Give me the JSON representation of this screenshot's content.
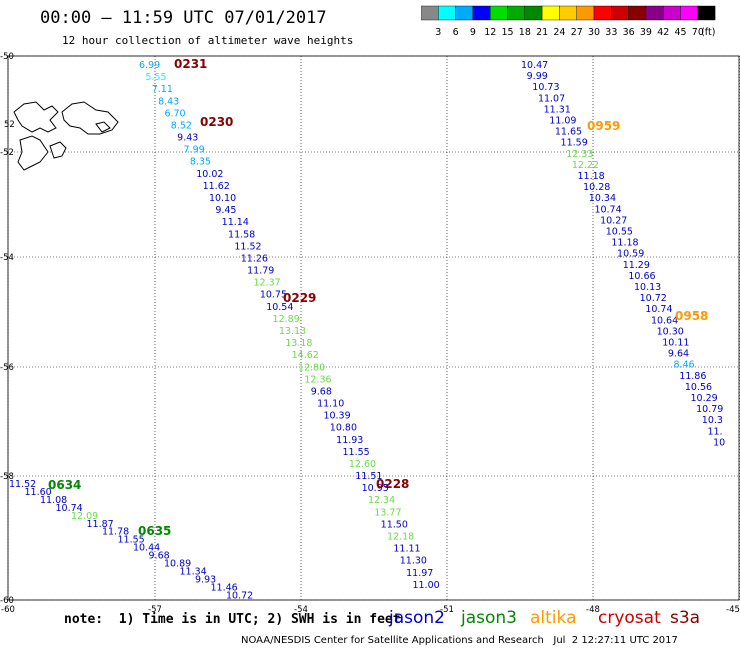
{
  "title": "00:00 – 11:59 UTC 07/01/2017",
  "subtitle": "12 hour collection of altimeter wave heights",
  "note": "note:  1) Time is in UTC; 2) SWH is in feet",
  "credit": "NOAA/NESDIS Center for Satellite Applications and Research   Jul  2 12:27:11 UTC 2017",
  "satellites": [
    {
      "name": "jason2",
      "color": "#0000cc"
    },
    {
      "name": "jason3",
      "color": "#008800"
    },
    {
      "name": "altika",
      "color": "#ff9900"
    },
    {
      "name": "cryosat",
      "color": "#cc0000"
    },
    {
      "name": "s3a",
      "color": "#880000"
    }
  ],
  "colorbar": {
    "unit": "(ft)",
    "labels": [
      "3",
      "6",
      "9",
      "12",
      "15",
      "18",
      "21",
      "24",
      "27",
      "30",
      "33",
      "36",
      "39",
      "42",
      "45",
      "70"
    ],
    "colors": [
      "#888888",
      "#00ffff",
      "#00aaff",
      "#0000ff",
      "#00dd00",
      "#00aa00",
      "#008800",
      "#ffff00",
      "#ffcc00",
      "#ff9900",
      "#ff0000",
      "#cc0000",
      "#880000",
      "#880088",
      "#cc00cc",
      "#ff00ff",
      "#000000"
    ]
  },
  "map": {
    "x_ticks": [
      "-60",
      "-57",
      "-54",
      "-51",
      "-48",
      "-45"
    ],
    "y_ticks": [
      "-50",
      "-52",
      "-54",
      "-56",
      "-58",
      "-60"
    ],
    "gridline_label_52": "52"
  },
  "passes": [
    {
      "time": "0231",
      "time_color": "#880000"
    },
    {
      "time": "0230",
      "time_color": "#880000"
    },
    {
      "time": "0229",
      "time_color": "#880000"
    },
    {
      "time": "0228",
      "time_color": "#880000"
    },
    {
      "time": "0959",
      "time_color": "#ff9900"
    },
    {
      "time": "0958",
      "time_color": "#ff9900"
    },
    {
      "time": "0634",
      "time_color": "#008800"
    },
    {
      "time": "0635",
      "time_color": "#008800"
    }
  ],
  "tracks": [
    {
      "name": "track-0231",
      "values": [
        "6.99",
        "5.55",
        "7.11",
        "8.43",
        "6.70",
        "8.52",
        "9.43",
        "7.99",
        "8.35",
        "10.02",
        "11.62",
        "10.10",
        "9.45",
        "11.14",
        "11.58",
        "11.52",
        "11.26",
        "11.79",
        "12.37",
        "10.75",
        "10.54",
        "12.89",
        "13.13",
        "13.18",
        "14.62",
        "12.80",
        "12.36",
        "9.68",
        "11.10",
        "10.39",
        "10.80",
        "11.93",
        "11.55",
        "12.60",
        "11.51",
        "10.95",
        "12.34",
        "13.77",
        "11.50",
        "12.18",
        "11.11",
        "11.30",
        "11.97",
        "11.00"
      ],
      "colors": [
        "#00aaff",
        "#00ffff",
        "#00aaff",
        "#00aaff",
        "#00aaff",
        "#00aaff",
        "#0000cc",
        "#00aaff",
        "#00aaff",
        "#0000cc",
        "#0000cc",
        "#0000cc",
        "#0000cc",
        "#0000cc",
        "#0000cc",
        "#0000cc",
        "#0000cc",
        "#0000cc",
        "#66dd44",
        "#0000cc",
        "#0000cc",
        "#66dd44",
        "#66dd44",
        "#66dd44",
        "#66dd44",
        "#66dd44",
        "#66dd44",
        "#0000cc",
        "#0000cc",
        "#0000cc",
        "#0000cc",
        "#0000cc",
        "#0000cc",
        "#66dd44",
        "#0000cc",
        "#0000cc",
        "#66dd44",
        "#66dd44",
        "#0000cc",
        "#66dd44",
        "#0000cc",
        "#0000cc",
        "#0000cc",
        "#0000cc"
      ]
    },
    {
      "name": "track-0959",
      "values": [
        "10.47",
        "9.99",
        "10.73",
        "11.07",
        "11.31",
        "11.09",
        "11.65",
        "11.59",
        "12.33",
        "12.22",
        "11.18",
        "10.28",
        "10.34",
        "10.74",
        "10.27",
        "10.55",
        "11.18",
        "10.59",
        "11.29",
        "10.66",
        "10.13",
        "10.72",
        "10.74",
        "10.64",
        "10.30",
        "10.11",
        "9.64",
        "8.46",
        "11.86",
        "10.56",
        "10.29",
        "10.79",
        "10.3",
        "11.",
        "10"
      ],
      "colors": [
        "#0000cc",
        "#0000cc",
        "#0000cc",
        "#0000cc",
        "#0000cc",
        "#0000cc",
        "#0000cc",
        "#0000cc",
        "#66dd44",
        "#66dd44",
        "#0000cc",
        "#0000cc",
        "#0000cc",
        "#0000cc",
        "#0000cc",
        "#0000cc",
        "#0000cc",
        "#0000cc",
        "#0000cc",
        "#0000cc",
        "#0000cc",
        "#0000cc",
        "#0000cc",
        "#0000cc",
        "#0000cc",
        "#0000cc",
        "#0000cc",
        "#00aaff",
        "#0000cc",
        "#0000cc",
        "#0000cc",
        "#0000cc",
        "#0000cc",
        "#0000cc",
        "#0000cc"
      ]
    },
    {
      "name": "track-0634",
      "values": [
        "11.52",
        "11.60",
        "11.08",
        "10.74",
        "12.09",
        "11.87",
        "11.78",
        "11.55",
        "10.44",
        "9.68",
        "10.89",
        "11.34",
        "9.93",
        "11.46",
        "10.72"
      ],
      "colors": [
        "#0000cc",
        "#0000cc",
        "#0000cc",
        "#0000cc",
        "#66dd44",
        "#0000cc",
        "#0000cc",
        "#0000cc",
        "#0000cc",
        "#0000cc",
        "#0000cc",
        "#0000cc",
        "#0000cc",
        "#0000cc",
        "#0000cc"
      ]
    }
  ]
}
